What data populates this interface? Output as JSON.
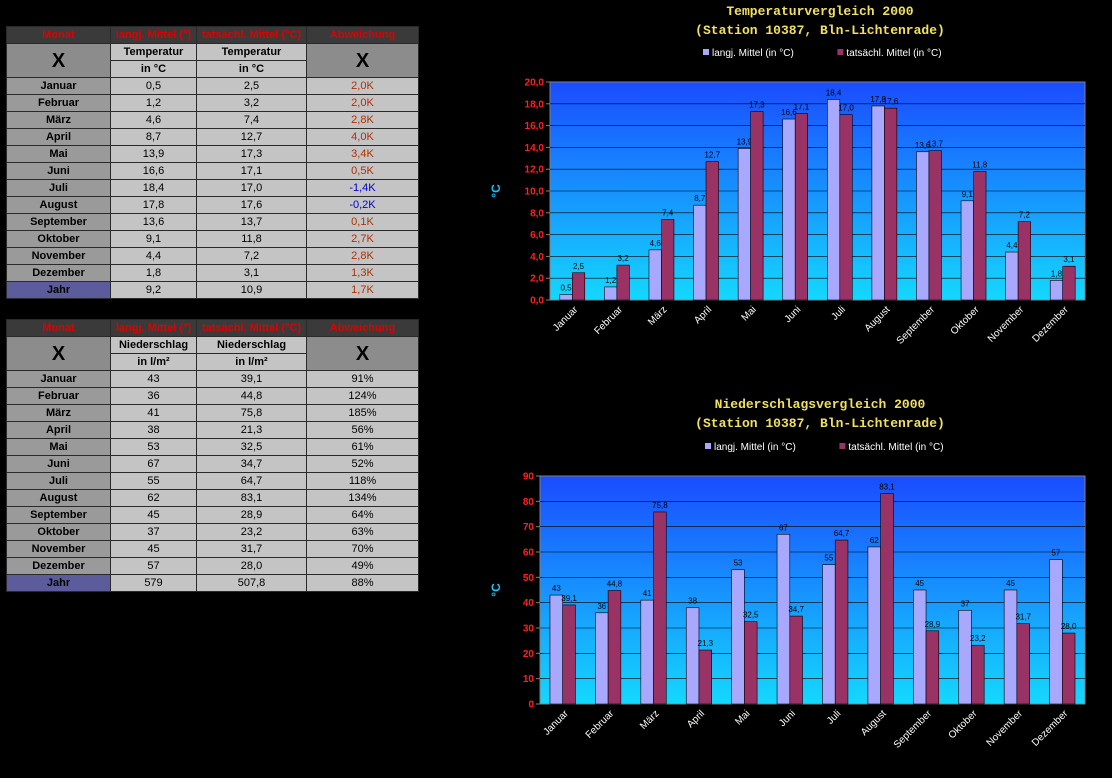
{
  "temp_table": {
    "headers": [
      "Monat",
      "langj. Mittel (°)",
      "tatsächl. Mittel (°C)",
      "Abweichung"
    ],
    "x_mark": "X",
    "sub1": [
      "Temperatur",
      "Temperatur"
    ],
    "sub2": [
      "in °C",
      "in °C"
    ],
    "rows": [
      {
        "m": "Januar",
        "a": "0,5",
        "b": "2,5",
        "d": "2,0K",
        "s": "pos"
      },
      {
        "m": "Februar",
        "a": "1,2",
        "b": "3,2",
        "d": "2,0K",
        "s": "pos"
      },
      {
        "m": "März",
        "a": "4,6",
        "b": "7,4",
        "d": "2,8K",
        "s": "pos"
      },
      {
        "m": "April",
        "a": "8,7",
        "b": "12,7",
        "d": "4,0K",
        "s": "pos"
      },
      {
        "m": "Mai",
        "a": "13,9",
        "b": "17,3",
        "d": "3,4K",
        "s": "pos"
      },
      {
        "m": "Juni",
        "a": "16,6",
        "b": "17,1",
        "d": "0,5K",
        "s": "pos"
      },
      {
        "m": "Juli",
        "a": "18,4",
        "b": "17,0",
        "d": "-1,4K",
        "s": "neg"
      },
      {
        "m": "August",
        "a": "17,8",
        "b": "17,6",
        "d": "-0,2K",
        "s": "neg"
      },
      {
        "m": "September",
        "a": "13,6",
        "b": "13,7",
        "d": "0,1K",
        "s": "pos"
      },
      {
        "m": "Oktober",
        "a": "9,1",
        "b": "11,8",
        "d": "2,7K",
        "s": "pos"
      },
      {
        "m": "November",
        "a": "4,4",
        "b": "7,2",
        "d": "2,8K",
        "s": "pos"
      },
      {
        "m": "Dezember",
        "a": "1,8",
        "b": "3,1",
        "d": "1,3K",
        "s": "pos"
      }
    ],
    "total": {
      "m": "Jahr",
      "a": "9,2",
      "b": "10,9",
      "d": "1,7K",
      "s": "pos"
    }
  },
  "rain_table": {
    "headers": [
      "Monat",
      "langj. Mittel (°)",
      "tatsächl. Mittel (°C)",
      "Abweichung"
    ],
    "x_mark": "X",
    "sub1": [
      "Niederschlag",
      "Niederschlag"
    ],
    "sub2": [
      "in l/m²",
      "in l/m²"
    ],
    "rows": [
      {
        "m": "Januar",
        "a": "43",
        "b": "39,1",
        "d": "91%",
        "s": "pct"
      },
      {
        "m": "Februar",
        "a": "36",
        "b": "44,8",
        "d": "124%",
        "s": "pct"
      },
      {
        "m": "März",
        "a": "41",
        "b": "75,8",
        "d": "185%",
        "s": "pct"
      },
      {
        "m": "April",
        "a": "38",
        "b": "21,3",
        "d": "56%",
        "s": "pct"
      },
      {
        "m": "Mai",
        "a": "53",
        "b": "32,5",
        "d": "61%",
        "s": "pct"
      },
      {
        "m": "Juni",
        "a": "67",
        "b": "34,7",
        "d": "52%",
        "s": "pct"
      },
      {
        "m": "Juli",
        "a": "55",
        "b": "64,7",
        "d": "118%",
        "s": "pct"
      },
      {
        "m": "August",
        "a": "62",
        "b": "83,1",
        "d": "134%",
        "s": "pct"
      },
      {
        "m": "September",
        "a": "45",
        "b": "28,9",
        "d": "64%",
        "s": "pct"
      },
      {
        "m": "Oktober",
        "a": "37",
        "b": "23,2",
        "d": "63%",
        "s": "pct"
      },
      {
        "m": "November",
        "a": "45",
        "b": "31,7",
        "d": "70%",
        "s": "pct"
      },
      {
        "m": "Dezember",
        "a": "57",
        "b": "28,0",
        "d": "49%",
        "s": "pct"
      }
    ],
    "total": {
      "m": "Jahr",
      "a": "579",
      "b": "507,8",
      "d": "88%",
      "s": "pct"
    }
  },
  "colors": {
    "series_a": "#a8a8ff",
    "series_b": "#993366",
    "axis_label": "#ff2020",
    "plot_top": "#1a4cff",
    "plot_bottom": "#14d8ff",
    "ylabel": "#14c8ff"
  },
  "chart_data": [
    {
      "type": "bar",
      "title": "Temperaturvergleich 2000",
      "subtitle": "(Station 10387, Bln-Lichtenrade)",
      "categories": [
        "Januar",
        "Februar",
        "März",
        "April",
        "Mai",
        "Juni",
        "Juli",
        "August",
        "September",
        "Oktober",
        "November",
        "Dezember"
      ],
      "series": [
        {
          "name": "langj. Mittel (in °C)",
          "values": [
            0.5,
            1.2,
            4.6,
            8.7,
            13.9,
            16.6,
            18.4,
            17.8,
            13.6,
            9.1,
            4.4,
            1.8
          ],
          "labels": [
            "0,5",
            "1,2",
            "4,6",
            "8,7",
            "13,9",
            "16,6",
            "18,4",
            "17,8",
            "13,6",
            "9,1",
            "4,4",
            "1,8"
          ]
        },
        {
          "name": "tatsächl. Mittel (in °C)",
          "values": [
            2.5,
            3.2,
            7.4,
            12.7,
            17.3,
            17.1,
            17.0,
            17.6,
            13.7,
            11.8,
            7.2,
            3.1
          ],
          "labels": [
            "2,5",
            "3,2",
            "7,4",
            "12,7",
            "17,3",
            "17,1",
            "17,0",
            "17,6",
            "13,7",
            "11,8",
            "7,2",
            "3,1"
          ]
        }
      ],
      "ylabel": "°C",
      "ylim": [
        0,
        20
      ],
      "yticks": [
        "0,0",
        "2,0",
        "4,0",
        "6,0",
        "8,0",
        "10,0",
        "12,0",
        "14,0",
        "16,0",
        "18,0",
        "20,0"
      ],
      "grid": true,
      "legend": "top"
    },
    {
      "type": "bar",
      "title": "Niederschlagsvergleich 2000",
      "subtitle": "(Station 10387, Bln-Lichtenrade)",
      "categories": [
        "Januar",
        "Februar",
        "März",
        "April",
        "Mai",
        "Juni",
        "Juli",
        "August",
        "September",
        "Oktober",
        "November",
        "Dezember"
      ],
      "series": [
        {
          "name": "langj. Mittel (in °C)",
          "values": [
            43,
            36,
            41,
            38,
            53,
            67,
            55,
            62,
            45,
            37,
            45,
            57
          ],
          "labels": [
            "43",
            "36",
            "41",
            "38",
            "53",
            "67",
            "55",
            "62",
            "45",
            "37",
            "45",
            "57"
          ]
        },
        {
          "name": "tatsächl. Mittel (in °C)",
          "values": [
            39.1,
            44.8,
            75.8,
            21.3,
            32.5,
            34.7,
            64.7,
            83.1,
            28.9,
            23.2,
            31.7,
            28.0
          ],
          "labels": [
            "39,1",
            "44,8",
            "75,8",
            "21,3",
            "32,5",
            "34,7",
            "64,7",
            "83,1",
            "28,9",
            "23,2",
            "31,7",
            "28,0"
          ]
        }
      ],
      "ylabel": "°C",
      "ylim": [
        0,
        90
      ],
      "yticks": [
        "0",
        "10",
        "20",
        "30",
        "40",
        "50",
        "60",
        "70",
        "80",
        "90"
      ],
      "grid": true,
      "legend": "top"
    }
  ]
}
